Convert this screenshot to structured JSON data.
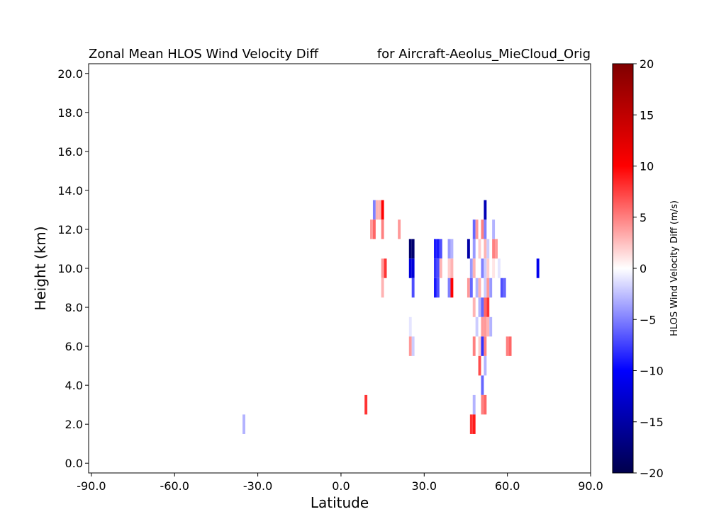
{
  "chart_data": {
    "type": "heatmap",
    "title_left": "Zonal Mean HLOS Wind Velocity Diff",
    "title_right": "for Aircraft-Aeolus_MieCloud_Orig",
    "xlabel": "Latitude",
    "ylabel": "Height (km)",
    "xlim": [
      -91,
      90
    ],
    "ylim": [
      -0.5,
      20.5
    ],
    "xticks": [
      -90,
      -60,
      -30,
      0,
      30,
      60,
      90
    ],
    "xtick_labels": [
      "-90.0",
      "-60.0",
      "-30.0",
      "0.0",
      "30.0",
      "60.0",
      "90.0"
    ],
    "yticks": [
      0,
      2,
      4,
      6,
      8,
      10,
      12,
      14,
      16,
      18,
      20
    ],
    "ytick_labels": [
      "0.0",
      "2.0",
      "4.0",
      "6.0",
      "8.0",
      "10.0",
      "12.0",
      "14.0",
      "16.0",
      "18.0",
      "20.0"
    ],
    "grid": false,
    "cell_width_deg": 1,
    "cell_height_km": 1,
    "colorbar": {
      "label": "HLOS Wind Velocity Diff (m/s)",
      "colormap": "seismic",
      "range": [
        -20,
        20
      ],
      "ticks": [
        -20,
        -15,
        -10,
        -5,
        0,
        5,
        10,
        15,
        20
      ],
      "tick_labels": [
        "−20",
        "−15",
        "−10",
        "−5",
        "0",
        "5",
        "10",
        "15",
        "20"
      ]
    },
    "cells": [
      {
        "lat": -35,
        "height": 2,
        "value": -3
      },
      {
        "lat": 9,
        "height": 3,
        "value": 8
      },
      {
        "lat": 12,
        "height": 13,
        "value": -5
      },
      {
        "lat": 13,
        "height": 13,
        "value": 3
      },
      {
        "lat": 14,
        "height": 13,
        "value": 3
      },
      {
        "lat": 15,
        "height": 13,
        "value": 10
      },
      {
        "lat": 11,
        "height": 12,
        "value": 4
      },
      {
        "lat": 12,
        "height": 12,
        "value": 6
      },
      {
        "lat": 15,
        "height": 12,
        "value": 5
      },
      {
        "lat": 21,
        "height": 12,
        "value": 4
      },
      {
        "lat": 15,
        "height": 10,
        "value": 4
      },
      {
        "lat": 16,
        "height": 10,
        "value": 8
      },
      {
        "lat": 15,
        "height": 9,
        "value": 3
      },
      {
        "lat": 25,
        "height": 11,
        "value": -18
      },
      {
        "lat": 26,
        "height": 11,
        "value": -18
      },
      {
        "lat": 25,
        "height": 10,
        "value": -12
      },
      {
        "lat": 26,
        "height": 10,
        "value": -12
      },
      {
        "lat": 26,
        "height": 9,
        "value": -7
      },
      {
        "lat": 25,
        "height": 7,
        "value": -1
      },
      {
        "lat": 25,
        "height": 6,
        "value": 4
      },
      {
        "lat": 26,
        "height": 6,
        "value": -2
      },
      {
        "lat": 34,
        "height": 11,
        "value": -9
      },
      {
        "lat": 35,
        "height": 11,
        "value": -9
      },
      {
        "lat": 36,
        "height": 11,
        "value": -7
      },
      {
        "lat": 34,
        "height": 10,
        "value": -8
      },
      {
        "lat": 35,
        "height": 10,
        "value": -7
      },
      {
        "lat": 36,
        "height": 10,
        "value": 3
      },
      {
        "lat": 34,
        "height": 9,
        "value": -9
      },
      {
        "lat": 35,
        "height": 9,
        "value": -7
      },
      {
        "lat": 39,
        "height": 11,
        "value": -4
      },
      {
        "lat": 40,
        "height": 11,
        "value": -3
      },
      {
        "lat": 39,
        "height": 10,
        "value": 2
      },
      {
        "lat": 40,
        "height": 10,
        "value": 3
      },
      {
        "lat": 39,
        "height": 9,
        "value": -5
      },
      {
        "lat": 40,
        "height": 9,
        "value": 10
      },
      {
        "lat": 46,
        "height": 11,
        "value": -15
      },
      {
        "lat": 48,
        "height": 11,
        "value": -4
      },
      {
        "lat": 50,
        "height": 11,
        "value": 2
      },
      {
        "lat": 52,
        "height": 11,
        "value": 3
      },
      {
        "lat": 53,
        "height": 11,
        "value": -2
      },
      {
        "lat": 55,
        "height": 11,
        "value": 5
      },
      {
        "lat": 56,
        "height": 11,
        "value": 4
      },
      {
        "lat": 48,
        "height": 12,
        "value": -6
      },
      {
        "lat": 49,
        "height": 12,
        "value": 4
      },
      {
        "lat": 51,
        "height": 12,
        "value": 5
      },
      {
        "lat": 52,
        "height": 12,
        "value": -5
      },
      {
        "lat": 55,
        "height": 12,
        "value": -3
      },
      {
        "lat": 52,
        "height": 13,
        "value": -14
      },
      {
        "lat": 47,
        "height": 10,
        "value": -4
      },
      {
        "lat": 48,
        "height": 10,
        "value": 3
      },
      {
        "lat": 51,
        "height": 10,
        "value": -5
      },
      {
        "lat": 52,
        "height": 10,
        "value": -2
      },
      {
        "lat": 53,
        "height": 10,
        "value": 2
      },
      {
        "lat": 55,
        "height": 10,
        "value": 1
      },
      {
        "lat": 57,
        "height": 10,
        "value": -1
      },
      {
        "lat": 71,
        "height": 10,
        "value": -11
      },
      {
        "lat": 46,
        "height": 9,
        "value": 4
      },
      {
        "lat": 47,
        "height": 9,
        "value": -6
      },
      {
        "lat": 49,
        "height": 9,
        "value": -3
      },
      {
        "lat": 50,
        "height": 9,
        "value": 3
      },
      {
        "lat": 52,
        "height": 9,
        "value": -2
      },
      {
        "lat": 53,
        "height": 9,
        "value": 4
      },
      {
        "lat": 54,
        "height": 9,
        "value": -4
      },
      {
        "lat": 58,
        "height": 9,
        "value": -7
      },
      {
        "lat": 59,
        "height": 9,
        "value": -6
      },
      {
        "lat": 48,
        "height": 8,
        "value": 3
      },
      {
        "lat": 50,
        "height": 8,
        "value": -3
      },
      {
        "lat": 51,
        "height": 8,
        "value": -6
      },
      {
        "lat": 52,
        "height": 8,
        "value": 6
      },
      {
        "lat": 53,
        "height": 8,
        "value": 8
      },
      {
        "lat": 49,
        "height": 7,
        "value": -2
      },
      {
        "lat": 51,
        "height": 7,
        "value": 4
      },
      {
        "lat": 52,
        "height": 7,
        "value": 4
      },
      {
        "lat": 53,
        "height": 7,
        "value": 3
      },
      {
        "lat": 54,
        "height": 7,
        "value": -3
      },
      {
        "lat": 48,
        "height": 6,
        "value": 5
      },
      {
        "lat": 50,
        "height": 6,
        "value": 2
      },
      {
        "lat": 51,
        "height": 6,
        "value": -8
      },
      {
        "lat": 52,
        "height": 6,
        "value": 5
      },
      {
        "lat": 60,
        "height": 6,
        "value": 5
      },
      {
        "lat": 61,
        "height": 6,
        "value": 6
      },
      {
        "lat": 50,
        "height": 5,
        "value": 7
      },
      {
        "lat": 52,
        "height": 5,
        "value": -3
      },
      {
        "lat": 51,
        "height": 4,
        "value": -6
      },
      {
        "lat": 48,
        "height": 3,
        "value": -3
      },
      {
        "lat": 51,
        "height": 3,
        "value": 5
      },
      {
        "lat": 52,
        "height": 3,
        "value": 6
      },
      {
        "lat": 47,
        "height": 2,
        "value": 8
      },
      {
        "lat": 48,
        "height": 2,
        "value": 9
      }
    ]
  }
}
